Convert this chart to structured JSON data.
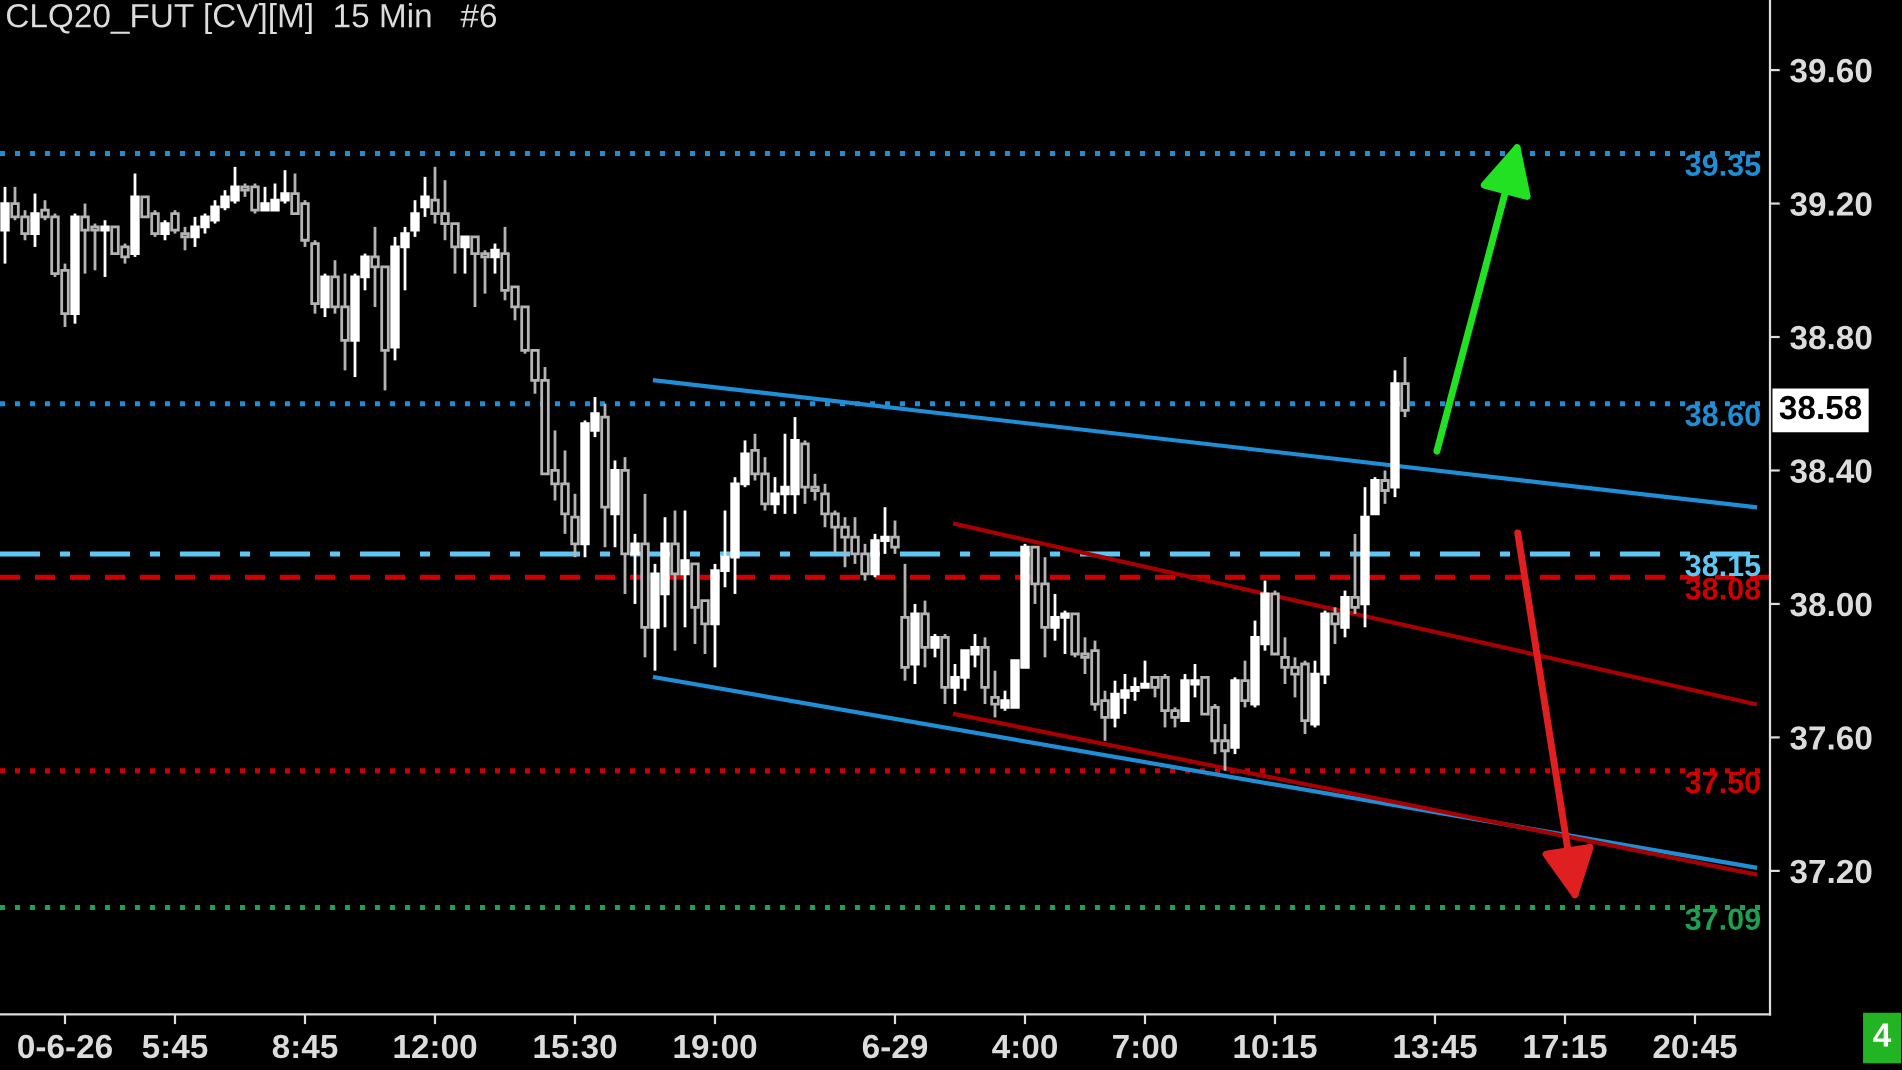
{
  "chart_data": {
    "type": "candlestick",
    "title": "CLQ20_FUT [CV][M]  15 Min   #6",
    "categories": [
      null,
      null,
      null,
      null,
      null,
      null,
      "0-6-26",
      null,
      null,
      null,
      null,
      null,
      null,
      null,
      null,
      null,
      null,
      "5:45",
      null,
      null,
      null,
      null,
      null,
      null,
      null,
      null,
      null,
      null,
      null,
      null,
      "8:45",
      null,
      null,
      null,
      null,
      null,
      null,
      null,
      null,
      null,
      null,
      null,
      null,
      "12:00",
      null,
      null,
      null,
      null,
      null,
      null,
      null,
      null,
      null,
      null,
      null,
      null,
      null,
      "15:30",
      null,
      null,
      null,
      null,
      null,
      null,
      null,
      null,
      null,
      null,
      null,
      null,
      null,
      "19:00",
      null,
      null,
      null,
      null,
      null,
      null,
      null,
      null,
      null,
      null,
      null,
      null,
      null,
      null,
      null,
      null,
      null,
      "6-29",
      null,
      null,
      null,
      null,
      null,
      null,
      null,
      null,
      null,
      null,
      null,
      null,
      "4:00",
      null,
      null,
      null,
      null,
      null,
      null,
      null,
      null,
      null,
      null,
      null,
      "7:00",
      null,
      null,
      null,
      null,
      null,
      null,
      null,
      null,
      null,
      null,
      null,
      null,
      "10:15",
      null,
      null,
      null,
      null,
      null,
      null,
      null,
      null,
      null,
      null,
      null,
      null,
      null,
      null,
      null,
      "13:45",
      null,
      null,
      null,
      null,
      null,
      null,
      null,
      null,
      null,
      null,
      null,
      null,
      "17:15",
      null,
      null,
      null,
      null,
      null,
      null,
      null,
      null,
      null,
      null,
      null,
      null,
      "20:45",
      null,
      null,
      null,
      null,
      null,
      null,
      null
    ],
    "ohlc": [
      [
        39.12,
        39.25,
        39.02,
        39.2
      ],
      [
        39.2,
        39.25,
        39.15,
        39.16
      ],
      [
        39.16,
        39.18,
        39.09,
        39.11
      ],
      [
        39.11,
        39.23,
        39.07,
        39.17
      ],
      [
        39.18,
        39.21,
        39.15,
        39.16
      ],
      [
        39.16,
        39.17,
        38.98,
        38.99
      ],
      [
        39.0,
        39.02,
        38.83,
        38.87
      ],
      [
        38.87,
        39.17,
        38.84,
        39.16
      ],
      [
        39.16,
        39.2,
        38.99,
        39.12
      ],
      [
        39.13,
        39.14,
        39.0,
        39.12
      ],
      [
        39.12,
        39.15,
        38.98,
        39.13
      ],
      [
        39.13,
        39.13,
        39.05,
        39.05
      ],
      [
        39.07,
        39.08,
        39.02,
        39.04
      ],
      [
        39.05,
        39.29,
        39.04,
        39.22
      ],
      [
        39.22,
        39.22,
        39.16,
        39.16
      ],
      [
        39.17,
        39.18,
        39.1,
        39.11
      ],
      [
        39.11,
        39.15,
        39.09,
        39.14
      ],
      [
        39.17,
        39.18,
        39.11,
        39.12
      ],
      [
        39.11,
        39.13,
        39.06,
        39.1
      ],
      [
        39.1,
        39.16,
        39.07,
        39.13
      ],
      [
        39.13,
        39.17,
        39.11,
        39.16
      ],
      [
        39.15,
        39.21,
        39.14,
        39.19
      ],
      [
        39.19,
        39.24,
        39.18,
        39.22
      ],
      [
        39.21,
        39.31,
        39.2,
        39.25
      ],
      [
        39.25,
        39.26,
        39.22,
        39.24
      ],
      [
        39.25,
        39.26,
        39.17,
        39.18
      ],
      [
        39.18,
        39.25,
        39.18,
        39.2
      ],
      [
        39.18,
        39.26,
        39.18,
        39.21
      ],
      [
        39.21,
        39.3,
        39.2,
        39.23
      ],
      [
        39.23,
        39.29,
        39.17,
        39.17
      ],
      [
        39.2,
        39.21,
        39.07,
        39.09
      ],
      [
        39.08,
        39.09,
        38.87,
        38.9
      ],
      [
        38.89,
        38.99,
        38.86,
        38.98
      ],
      [
        38.98,
        39.03,
        38.87,
        38.89
      ],
      [
        38.89,
        38.99,
        38.7,
        38.79
      ],
      [
        38.79,
        38.99,
        38.68,
        38.98
      ],
      [
        38.98,
        39.05,
        38.94,
        39.04
      ],
      [
        39.04,
        39.13,
        38.89,
        39.01
      ],
      [
        39.01,
        39.01,
        38.64,
        38.76
      ],
      [
        38.77,
        39.1,
        38.73,
        39.07
      ],
      [
        39.07,
        39.13,
        38.94,
        39.11
      ],
      [
        39.12,
        39.21,
        39.1,
        39.17
      ],
      [
        39.19,
        39.28,
        39.16,
        39.22
      ],
      [
        39.21,
        39.31,
        39.14,
        39.17
      ],
      [
        39.17,
        39.27,
        39.09,
        39.14
      ],
      [
        39.14,
        39.14,
        38.99,
        39.07
      ],
      [
        39.07,
        39.1,
        38.99,
        39.1
      ],
      [
        39.1,
        39.1,
        38.89,
        39.05
      ],
      [
        39.05,
        39.06,
        38.93,
        39.04
      ],
      [
        39.04,
        39.08,
        38.99,
        39.06
      ],
      [
        39.05,
        39.13,
        38.91,
        38.94
      ],
      [
        38.95,
        38.95,
        38.85,
        38.89
      ],
      [
        38.89,
        38.89,
        38.75,
        38.76
      ],
      [
        38.76,
        38.76,
        38.63,
        38.67
      ],
      [
        38.67,
        38.71,
        38.39,
        38.39
      ],
      [
        38.4,
        38.52,
        38.31,
        38.36
      ],
      [
        38.36,
        38.46,
        38.21,
        38.27
      ],
      [
        38.26,
        38.33,
        38.14,
        38.18
      ],
      [
        38.18,
        38.55,
        38.14,
        38.54
      ],
      [
        38.52,
        38.62,
        38.5,
        38.57
      ],
      [
        38.56,
        38.6,
        38.17,
        38.29
      ],
      [
        38.27,
        38.43,
        38.17,
        38.4
      ],
      [
        38.4,
        38.44,
        38.03,
        38.15
      ],
      [
        38.15,
        38.21,
        38.0,
        38.18
      ],
      [
        38.18,
        38.33,
        37.84,
        37.93
      ],
      [
        37.93,
        38.12,
        37.8,
        38.09
      ],
      [
        38.03,
        38.26,
        37.93,
        38.18
      ],
      [
        38.18,
        38.28,
        37.86,
        38.09
      ],
      [
        38.09,
        38.28,
        37.93,
        38.13
      ],
      [
        38.12,
        38.12,
        37.88,
        37.99
      ],
      [
        38.01,
        38.01,
        37.85,
        37.94
      ],
      [
        37.94,
        38.12,
        37.81,
        38.1
      ],
      [
        38.1,
        38.28,
        38.05,
        38.14
      ],
      [
        38.14,
        38.38,
        38.03,
        38.36
      ],
      [
        38.36,
        38.49,
        38.35,
        38.45
      ],
      [
        38.46,
        38.51,
        38.37,
        38.39
      ],
      [
        38.39,
        38.44,
        38.28,
        38.3
      ],
      [
        38.3,
        38.38,
        38.27,
        38.33
      ],
      [
        38.33,
        38.51,
        38.27,
        38.35
      ],
      [
        38.33,
        38.56,
        38.27,
        38.49
      ],
      [
        38.48,
        38.49,
        38.3,
        38.35
      ],
      [
        38.35,
        38.39,
        38.31,
        38.34
      ],
      [
        38.33,
        38.36,
        38.23,
        38.27
      ],
      [
        38.27,
        38.28,
        38.15,
        38.23
      ],
      [
        38.23,
        38.26,
        38.11,
        38.2
      ],
      [
        38.2,
        38.26,
        38.12,
        38.15
      ],
      [
        38.15,
        38.18,
        38.07,
        38.09
      ],
      [
        38.09,
        38.21,
        38.08,
        38.19
      ],
      [
        38.19,
        38.29,
        38.15,
        38.2
      ],
      [
        38.2,
        38.25,
        38.15,
        38.17
      ],
      [
        37.96,
        38.12,
        37.77,
        37.81
      ],
      [
        37.82,
        38.0,
        37.76,
        37.97
      ],
      [
        37.97,
        38.01,
        37.81,
        37.87
      ],
      [
        37.87,
        37.91,
        37.84,
        37.9
      ],
      [
        37.9,
        37.91,
        37.7,
        37.75
      ],
      [
        37.75,
        37.82,
        37.7,
        37.78
      ],
      [
        37.78,
        37.86,
        37.74,
        37.86
      ],
      [
        37.85,
        37.91,
        37.81,
        37.87
      ],
      [
        37.87,
        37.9,
        37.7,
        37.75
      ],
      [
        37.72,
        37.8,
        37.66,
        37.7
      ],
      [
        37.69,
        37.74,
        37.68,
        37.71
      ],
      [
        37.69,
        37.83,
        37.69,
        37.83
      ],
      [
        37.81,
        38.18,
        37.81,
        38.17
      ],
      [
        38.17,
        38.17,
        38.0,
        38.06
      ],
      [
        38.06,
        38.14,
        37.84,
        37.93
      ],
      [
        37.93,
        38.03,
        37.89,
        37.96
      ],
      [
        37.96,
        37.98,
        37.85,
        37.97
      ],
      [
        37.97,
        37.97,
        37.84,
        37.85
      ],
      [
        37.85,
        37.9,
        37.79,
        37.84
      ],
      [
        37.86,
        37.89,
        37.68,
        37.7
      ],
      [
        37.71,
        37.74,
        37.59,
        37.66
      ],
      [
        37.66,
        37.77,
        37.63,
        37.73
      ],
      [
        37.72,
        37.79,
        37.67,
        37.74
      ],
      [
        37.74,
        37.78,
        37.71,
        37.75
      ],
      [
        37.75,
        37.83,
        37.75,
        37.76
      ],
      [
        37.78,
        37.78,
        37.72,
        37.75
      ],
      [
        37.78,
        37.79,
        37.63,
        37.68
      ],
      [
        37.68,
        37.69,
        37.63,
        37.66
      ],
      [
        37.65,
        37.79,
        37.65,
        37.77
      ],
      [
        37.76,
        37.82,
        37.72,
        37.77
      ],
      [
        37.78,
        37.78,
        37.67,
        37.67
      ],
      [
        37.69,
        37.7,
        37.55,
        37.59
      ],
      [
        37.59,
        37.64,
        37.5,
        37.56
      ],
      [
        37.57,
        37.78,
        37.55,
        37.77
      ],
      [
        37.77,
        37.83,
        37.69,
        37.71
      ],
      [
        37.7,
        37.95,
        37.69,
        37.9
      ],
      [
        37.88,
        38.07,
        37.86,
        38.03
      ],
      [
        38.03,
        38.04,
        37.85,
        37.85
      ],
      [
        37.84,
        37.9,
        37.76,
        37.81
      ],
      [
        37.81,
        37.84,
        37.72,
        37.79
      ],
      [
        37.82,
        37.83,
        37.61,
        37.65
      ],
      [
        37.64,
        37.83,
        37.63,
        37.79
      ],
      [
        37.79,
        37.98,
        37.76,
        37.97
      ],
      [
        37.97,
        37.99,
        37.88,
        37.94
      ],
      [
        37.93,
        38.04,
        37.9,
        38.02
      ],
      [
        38.02,
        38.21,
        37.97,
        37.99
      ],
      [
        38.0,
        38.35,
        37.93,
        38.26
      ],
      [
        38.27,
        38.38,
        38.27,
        38.37
      ],
      [
        38.37,
        38.4,
        38.3,
        38.34
      ],
      [
        38.35,
        38.7,
        38.32,
        38.66
      ],
      [
        38.66,
        38.74,
        38.56,
        38.58
      ],
      null,
      null,
      null,
      null,
      null,
      null,
      null,
      null,
      null,
      null,
      null,
      null,
      null,
      null,
      null,
      null,
      null,
      null,
      null,
      null,
      null,
      null,
      null,
      null,
      null,
      null,
      null,
      null,
      null,
      null,
      null,
      null,
      null,
      null,
      null,
      null
    ],
    "series": [
      {
        "type": "line",
        "color": "#1e8fd6",
        "values": [
          null,
          null,
          null,
          null,
          null,
          null,
          null,
          null,
          null,
          null,
          null,
          null,
          null,
          null,
          null,
          null,
          null,
          null,
          null,
          null,
          null,
          null,
          null,
          null,
          null,
          null,
          null,
          null,
          null,
          null,
          null,
          null,
          null,
          null,
          null,
          null,
          null,
          null,
          null,
          null,
          null,
          null,
          null,
          null,
          null,
          null,
          null,
          null,
          null,
          null,
          null,
          null,
          null,
          null,
          null,
          null,
          null,
          null,
          null,
          null,
          null,
          null,
          null,
          null,
          null,
          38.67,
          null,
          null,
          null,
          null,
          null,
          null,
          null,
          null,
          null,
          null,
          null,
          null,
          null,
          null,
          null,
          null,
          null,
          null,
          null,
          null,
          null,
          null,
          null,
          null,
          null,
          null,
          null,
          null,
          null,
          null,
          null,
          null,
          null,
          null,
          null,
          null,
          null,
          null,
          null,
          null,
          null,
          null,
          null,
          null,
          null,
          null,
          null,
          null,
          null,
          null,
          null,
          null,
          null,
          null,
          null,
          null,
          null,
          null,
          null,
          null,
          null,
          null,
          null,
          null,
          null,
          null,
          null,
          null,
          null,
          null,
          null,
          null,
          null,
          null,
          null,
          null,
          null,
          null,
          null,
          null,
          null,
          null,
          null,
          null,
          null,
          null,
          null,
          null,
          null,
          null,
          null,
          null,
          null,
          null,
          null,
          null,
          null,
          null,
          null,
          null,
          null,
          null,
          null,
          null,
          null,
          null,
          null,
          null,
          null,
          38.29,
          null
        ]
      },
      {
        "type": "line",
        "color": "#1e8fd6",
        "values": [
          null,
          null,
          null,
          null,
          null,
          null,
          null,
          null,
          null,
          null,
          null,
          null,
          null,
          null,
          null,
          null,
          null,
          null,
          null,
          null,
          null,
          null,
          null,
          null,
          null,
          null,
          null,
          null,
          null,
          null,
          null,
          null,
          null,
          null,
          null,
          null,
          null,
          null,
          null,
          null,
          null,
          null,
          null,
          null,
          null,
          null,
          null,
          null,
          null,
          null,
          null,
          null,
          null,
          null,
          null,
          null,
          null,
          null,
          null,
          null,
          null,
          null,
          null,
          null,
          null,
          37.78,
          null,
          null,
          null,
          null,
          null,
          null,
          null,
          null,
          null,
          null,
          null,
          null,
          null,
          null,
          null,
          null,
          null,
          null,
          null,
          null,
          null,
          null,
          null,
          null,
          null,
          null,
          null,
          null,
          null,
          null,
          null,
          null,
          null,
          null,
          null,
          null,
          null,
          null,
          null,
          null,
          null,
          null,
          null,
          null,
          null,
          null,
          null,
          null,
          null,
          null,
          null,
          null,
          null,
          null,
          null,
          null,
          null,
          null,
          null,
          null,
          null,
          null,
          null,
          null,
          null,
          null,
          null,
          null,
          null,
          null,
          null,
          null,
          null,
          null,
          null,
          null,
          null,
          null,
          null,
          null,
          null,
          null,
          null,
          null,
          null,
          null,
          null,
          null,
          null,
          null,
          null,
          null,
          null,
          null,
          null,
          null,
          null,
          null,
          null,
          null,
          null,
          null,
          null,
          null,
          null,
          null,
          null,
          null,
          null,
          37.21,
          null
        ]
      },
      {
        "type": "line",
        "color": "#a80000",
        "values": [
          null,
          null,
          null,
          null,
          null,
          null,
          null,
          null,
          null,
          null,
          null,
          null,
          null,
          null,
          null,
          null,
          null,
          null,
          null,
          null,
          null,
          null,
          null,
          null,
          null,
          null,
          null,
          null,
          null,
          null,
          null,
          null,
          null,
          null,
          null,
          null,
          null,
          null,
          null,
          null,
          null,
          null,
          null,
          null,
          null,
          null,
          null,
          null,
          null,
          null,
          null,
          null,
          null,
          null,
          null,
          null,
          null,
          null,
          null,
          null,
          null,
          null,
          null,
          null,
          null,
          null,
          null,
          null,
          null,
          null,
          null,
          null,
          null,
          null,
          null,
          null,
          null,
          null,
          null,
          null,
          null,
          null,
          null,
          null,
          null,
          null,
          null,
          null,
          null,
          null,
          null,
          null,
          null,
          null,
          null,
          38.24,
          null,
          null,
          null,
          null,
          null,
          null,
          null,
          null,
          null,
          null,
          null,
          null,
          null,
          null,
          null,
          null,
          null,
          null,
          null,
          null,
          null,
          null,
          null,
          null,
          null,
          null,
          null,
          null,
          null,
          null,
          null,
          null,
          null,
          null,
          null,
          null,
          null,
          null,
          null,
          null,
          null,
          null,
          null,
          null,
          null,
          null,
          null,
          null,
          null,
          null,
          null,
          null,
          null,
          null,
          null,
          null,
          null,
          null,
          null,
          null,
          null,
          null,
          null,
          null,
          null,
          null,
          null,
          null,
          null,
          null,
          null,
          null,
          null,
          null,
          null,
          null,
          null,
          null,
          null,
          37.7,
          null
        ]
      },
      {
        "type": "line",
        "color": "#a80000",
        "values": [
          null,
          null,
          null,
          null,
          null,
          null,
          null,
          null,
          null,
          null,
          null,
          null,
          null,
          null,
          null,
          null,
          null,
          null,
          null,
          null,
          null,
          null,
          null,
          null,
          null,
          null,
          null,
          null,
          null,
          null,
          null,
          null,
          null,
          null,
          null,
          null,
          null,
          null,
          null,
          null,
          null,
          null,
          null,
          null,
          null,
          null,
          null,
          null,
          null,
          null,
          null,
          null,
          null,
          null,
          null,
          null,
          null,
          null,
          null,
          null,
          null,
          null,
          null,
          null,
          null,
          null,
          null,
          null,
          null,
          null,
          null,
          null,
          null,
          null,
          null,
          null,
          null,
          null,
          null,
          null,
          null,
          null,
          null,
          null,
          null,
          null,
          null,
          null,
          null,
          null,
          null,
          null,
          null,
          null,
          null,
          37.67,
          null,
          null,
          null,
          null,
          null,
          null,
          null,
          null,
          null,
          null,
          null,
          null,
          null,
          null,
          null,
          null,
          null,
          null,
          null,
          null,
          null,
          null,
          null,
          null,
          null,
          null,
          null,
          null,
          null,
          null,
          null,
          null,
          null,
          null,
          null,
          null,
          null,
          null,
          null,
          null,
          null,
          null,
          null,
          null,
          null,
          null,
          null,
          null,
          null,
          null,
          null,
          null,
          null,
          null,
          null,
          null,
          null,
          null,
          null,
          null,
          null,
          null,
          null,
          null,
          null,
          null,
          null,
          null,
          null,
          null,
          null,
          null,
          null,
          null,
          null,
          null,
          null,
          null,
          null,
          37.19,
          null
        ]
      }
    ],
    "ylim": [
      36.77,
      39.81
    ],
    "yticks": [
      {
        "value": 37.2,
        "label": "37.20"
      },
      {
        "value": 37.6,
        "label": "37.60"
      },
      {
        "value": 38.0,
        "label": "38.00"
      },
      {
        "value": 38.4,
        "label": "38.40"
      },
      {
        "value": 38.8,
        "label": "38.80"
      },
      {
        "value": 39.2,
        "label": "39.20"
      },
      {
        "value": 39.6,
        "label": "39.60"
      }
    ],
    "ref_lines": [
      {
        "axis": "y",
        "value": 39.35,
        "label": "39.35",
        "color": "#1e8fd6",
        "line_style": "dotted"
      },
      {
        "axis": "y",
        "value": 38.6,
        "label": "38.60",
        "color": "#1e8fd6",
        "line_style": "dotted"
      },
      {
        "axis": "y",
        "value": 38.15,
        "label": "38.15",
        "color": "#5cc8f5",
        "line_style": "dashdot"
      },
      {
        "axis": "y",
        "value": 38.08,
        "label": "38.08",
        "color": "#d00000",
        "line_style": "dashed"
      },
      {
        "axis": "y",
        "value": 37.5,
        "label": "37.50",
        "color": "#d00000",
        "line_style": "dotted"
      },
      {
        "axis": "y",
        "value": 37.09,
        "label": "37.09",
        "color": "#1ea050",
        "line_style": "dotted"
      }
    ],
    "annotations": [
      "38.58",
      "4"
    ],
    "grid": false,
    "legend": false
  }
}
